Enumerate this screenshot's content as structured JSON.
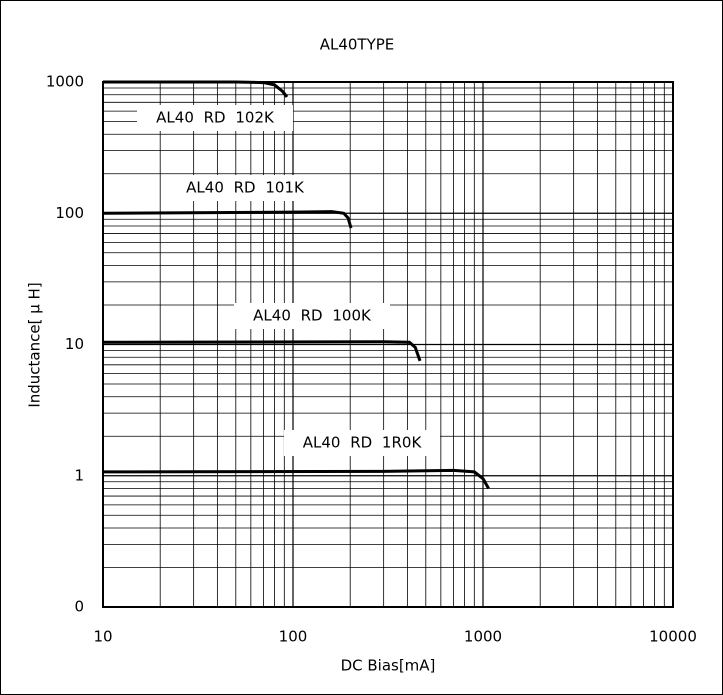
{
  "chart_data": {
    "type": "line",
    "title": "AL40TYPE",
    "x_label": "DC Bias[mA]",
    "y_label": "Inductance[ μ H]",
    "xscale": "log",
    "yscale": "log",
    "grid": true,
    "minor_grid": true,
    "xlim": [
      10,
      10000
    ],
    "xticks": [
      10,
      100,
      1000,
      10000
    ],
    "ylim": [
      0.1,
      1000
    ],
    "yticks": [
      {
        "value": 0.1,
        "label": "0"
      },
      1,
      10,
      100,
      1000
    ],
    "series": [
      {
        "name": "AL40 RD 102K",
        "color": "#000000",
        "x": [
          10,
          50,
          70,
          80,
          88,
          93
        ],
        "values": [
          1000,
          1000,
          990,
          950,
          850,
          770
        ]
      },
      {
        "name": "AL40 RD 101K",
        "color": "#000000",
        "x": [
          10,
          100,
          160,
          185,
          195,
          202
        ],
        "values": [
          100,
          102,
          103,
          100,
          92,
          77
        ]
      },
      {
        "name": "AL40 RD 100K",
        "color": "#000000",
        "x": [
          10,
          300,
          410,
          440,
          466
        ],
        "values": [
          10.4,
          10.5,
          10.4,
          9.5,
          7.5
        ]
      },
      {
        "name": "AL40 RD 1R0K",
        "color": "#000000",
        "x": [
          10,
          300,
          700,
          900,
          1000,
          1070
        ],
        "values": [
          1.07,
          1.08,
          1.1,
          1.07,
          0.95,
          0.8
        ]
      }
    ]
  }
}
